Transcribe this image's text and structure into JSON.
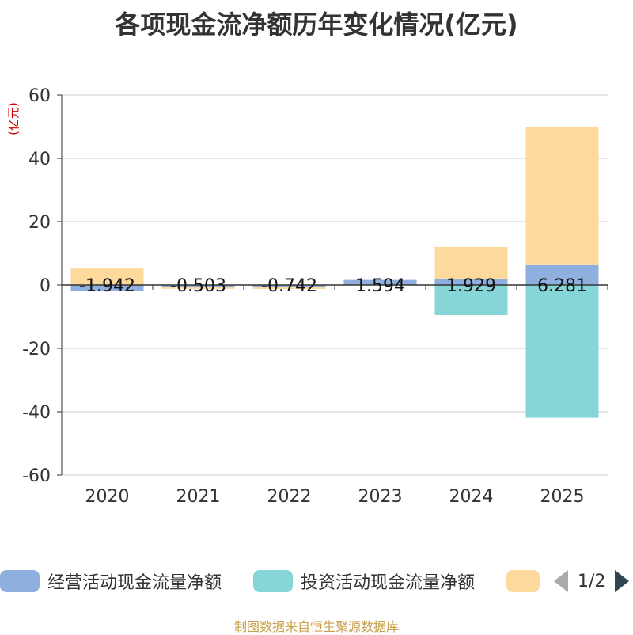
{
  "chart_data": {
    "type": "bar",
    "stacked": true,
    "title": "各项现金流净额历年变化情况(亿元)",
    "ylabel": "(亿元)",
    "ylim": [
      -60,
      60
    ],
    "yticks": [
      60,
      40,
      20,
      0,
      -20,
      -40,
      -60
    ],
    "categories": [
      "2020",
      "2021",
      "2022",
      "2023",
      "2024",
      "2025"
    ],
    "series": [
      {
        "name": "经营活动现金流量净额",
        "color": "#8fb0de",
        "values": [
          -1.942,
          -0.503,
          -0.742,
          1.594,
          1.929,
          6.281
        ],
        "labels": [
          "-1.942",
          "-0.503",
          "-0.742",
          "1.594",
          "1.929",
          "6.281"
        ]
      },
      {
        "name": "投资活动现金流量净额",
        "color": "#86d5d7",
        "values": [
          0,
          0,
          0,
          0,
          -9.5,
          -41.9
        ]
      },
      {
        "name": "",
        "color": "#fdd99b",
        "values": [
          5.2,
          -0.7,
          -0.5,
          0,
          10.1,
          43.6
        ]
      }
    ],
    "legend": {
      "position": "bottom",
      "page": "1/2"
    }
  },
  "source": "制图数据来自恒生聚源数据库"
}
